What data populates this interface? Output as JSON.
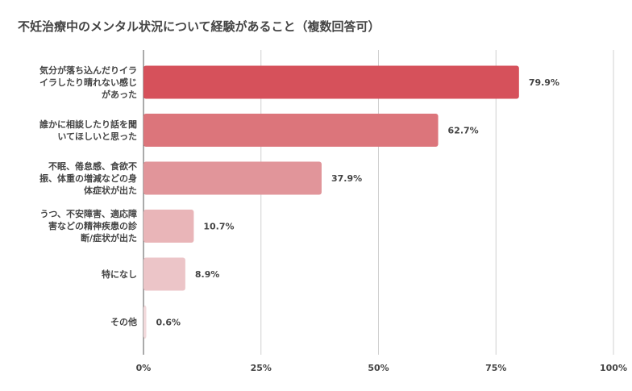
{
  "chart_data": {
    "type": "bar",
    "orientation": "horizontal",
    "title": "不妊治療中のメンタル状況について経験があること（複数回答可）",
    "categories": [
      [
        "気分が落ち込んだりイラ",
        "イラしたり晴れない感じ",
        "があった"
      ],
      [
        "誰かに相談したり話を聞",
        "いてほしいと思った"
      ],
      [
        "不眠、倦怠感、食欲不",
        "振、体重の増減などの身",
        "体症状が出た"
      ],
      [
        "うつ、不安障害、適応障",
        "害などの精神疾患の診",
        "断/症状が出た"
      ],
      [
        "特になし"
      ],
      [
        "その他"
      ]
    ],
    "values": [
      79.9,
      62.7,
      37.9,
      10.7,
      8.9,
      0.6
    ],
    "value_labels": [
      "79.9%",
      "62.7%",
      "37.9%",
      "10.7%",
      "8.9%",
      "0.6%"
    ],
    "bar_colors": [
      "#d6515b",
      "#dc757b",
      "#e1959a",
      "#e9b5b8",
      "#ecc5c8",
      "#f2dadc"
    ],
    "xlim": [
      0,
      100
    ],
    "x_ticks": [
      "0%",
      "25%",
      "50%",
      "75%",
      "100%"
    ],
    "grid": true
  }
}
